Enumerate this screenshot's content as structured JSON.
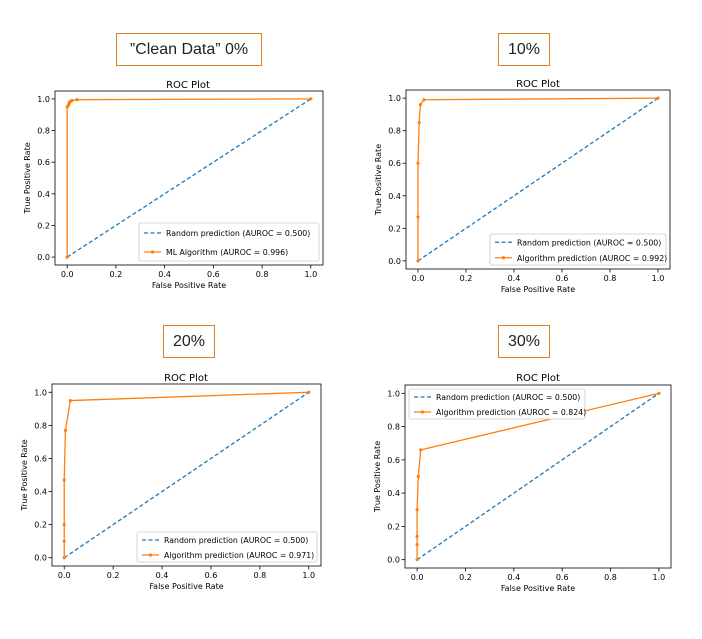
{
  "captions": [
    "”Clean Data” 0%",
    "10%",
    "20%",
    "30%"
  ],
  "colors": {
    "random": "#1f77b4",
    "algorithm": "#ff7f0e",
    "caption_border": "#d9822b"
  },
  "chart_data": [
    {
      "type": "line",
      "title": "ROC Plot",
      "xlabel": "False Positive Rate",
      "ylabel": "True Positive Rate",
      "xlim": [
        -0.05,
        1.05
      ],
      "ylim": [
        -0.05,
        1.05
      ],
      "xticks": [
        "0.0",
        "0.2",
        "0.4",
        "0.6",
        "0.8",
        "1.0"
      ],
      "yticks": [
        "0.0",
        "0.2",
        "0.4",
        "0.6",
        "0.8",
        "1.0"
      ],
      "legend_position": "bottom-right",
      "series": [
        {
          "name": "Random prediction (AUROC = 0.500)",
          "style": "dashed",
          "x": [
            0,
            1
          ],
          "y": [
            0,
            1
          ]
        },
        {
          "name": "ML Algorithm (AUROC = 0.996)",
          "style": "solid-marker",
          "x": [
            0,
            0,
            0.005,
            0.008,
            0.01,
            0.015,
            0.02,
            0.04,
            1.0
          ],
          "y": [
            0,
            0.95,
            0.96,
            0.97,
            0.98,
            0.985,
            0.99,
            0.995,
            1.0
          ]
        }
      ]
    },
    {
      "type": "line",
      "title": "ROC Plot",
      "xlabel": "False Positive Rate",
      "ylabel": "True Positive Rate",
      "xlim": [
        -0.05,
        1.05
      ],
      "ylim": [
        -0.05,
        1.05
      ],
      "xticks": [
        "0.0",
        "0.2",
        "0.4",
        "0.6",
        "0.8",
        "1.0"
      ],
      "yticks": [
        "0.0",
        "0.2",
        "0.4",
        "0.6",
        "0.8",
        "1.0"
      ],
      "legend_position": "bottom-right",
      "series": [
        {
          "name": "Random prediction (AUROC = 0.500)",
          "style": "dashed",
          "x": [
            0,
            1
          ],
          "y": [
            0,
            1
          ]
        },
        {
          "name": "Algorithm prediction (AUROC = 0.992)",
          "style": "solid-marker",
          "x": [
            0,
            0,
            0,
            0.005,
            0.01,
            0.025,
            1.0
          ],
          "y": [
            0,
            0.27,
            0.6,
            0.85,
            0.96,
            0.99,
            1.0
          ]
        }
      ]
    },
    {
      "type": "line",
      "title": "ROC Plot",
      "xlabel": "False Positive Rate",
      "ylabel": "True Positive Rate",
      "xlim": [
        -0.05,
        1.05
      ],
      "ylim": [
        -0.05,
        1.05
      ],
      "xticks": [
        "0.0",
        "0.2",
        "0.4",
        "0.6",
        "0.8",
        "1.0"
      ],
      "yticks": [
        "0.0",
        "0.2",
        "0.4",
        "0.6",
        "0.8",
        "1.0"
      ],
      "legend_position": "bottom-right",
      "series": [
        {
          "name": "Random prediction (AUROC = 0.500)",
          "style": "dashed",
          "x": [
            0,
            1
          ],
          "y": [
            0,
            1
          ]
        },
        {
          "name": "Algorithm prediction (AUROC = 0.971)",
          "style": "solid-marker",
          "x": [
            0,
            0,
            0,
            0,
            0.005,
            0.025,
            1.0
          ],
          "y": [
            0,
            0.1,
            0.2,
            0.47,
            0.77,
            0.95,
            1.0
          ]
        }
      ]
    },
    {
      "type": "line",
      "title": "ROC Plot",
      "xlabel": "False Positive Rate",
      "ylabel": "True Positive Rate",
      "xlim": [
        -0.05,
        1.05
      ],
      "ylim": [
        -0.05,
        1.05
      ],
      "xticks": [
        "0.0",
        "0.2",
        "0.4",
        "0.6",
        "0.8",
        "1.0"
      ],
      "yticks": [
        "0.0",
        "0.2",
        "0.4",
        "0.6",
        "0.8",
        "1.0"
      ],
      "legend_position": "top-left",
      "series": [
        {
          "name": "Random prediction (AUROC = 0.500)",
          "style": "dashed",
          "x": [
            0,
            1
          ],
          "y": [
            0,
            1
          ]
        },
        {
          "name": "Algorithm prediction (AUROC = 0.824)",
          "style": "solid-marker",
          "x": [
            0,
            0,
            0,
            0,
            0.005,
            0.015,
            1.0
          ],
          "y": [
            0,
            0.09,
            0.14,
            0.3,
            0.5,
            0.66,
            1.0
          ]
        }
      ]
    }
  ]
}
